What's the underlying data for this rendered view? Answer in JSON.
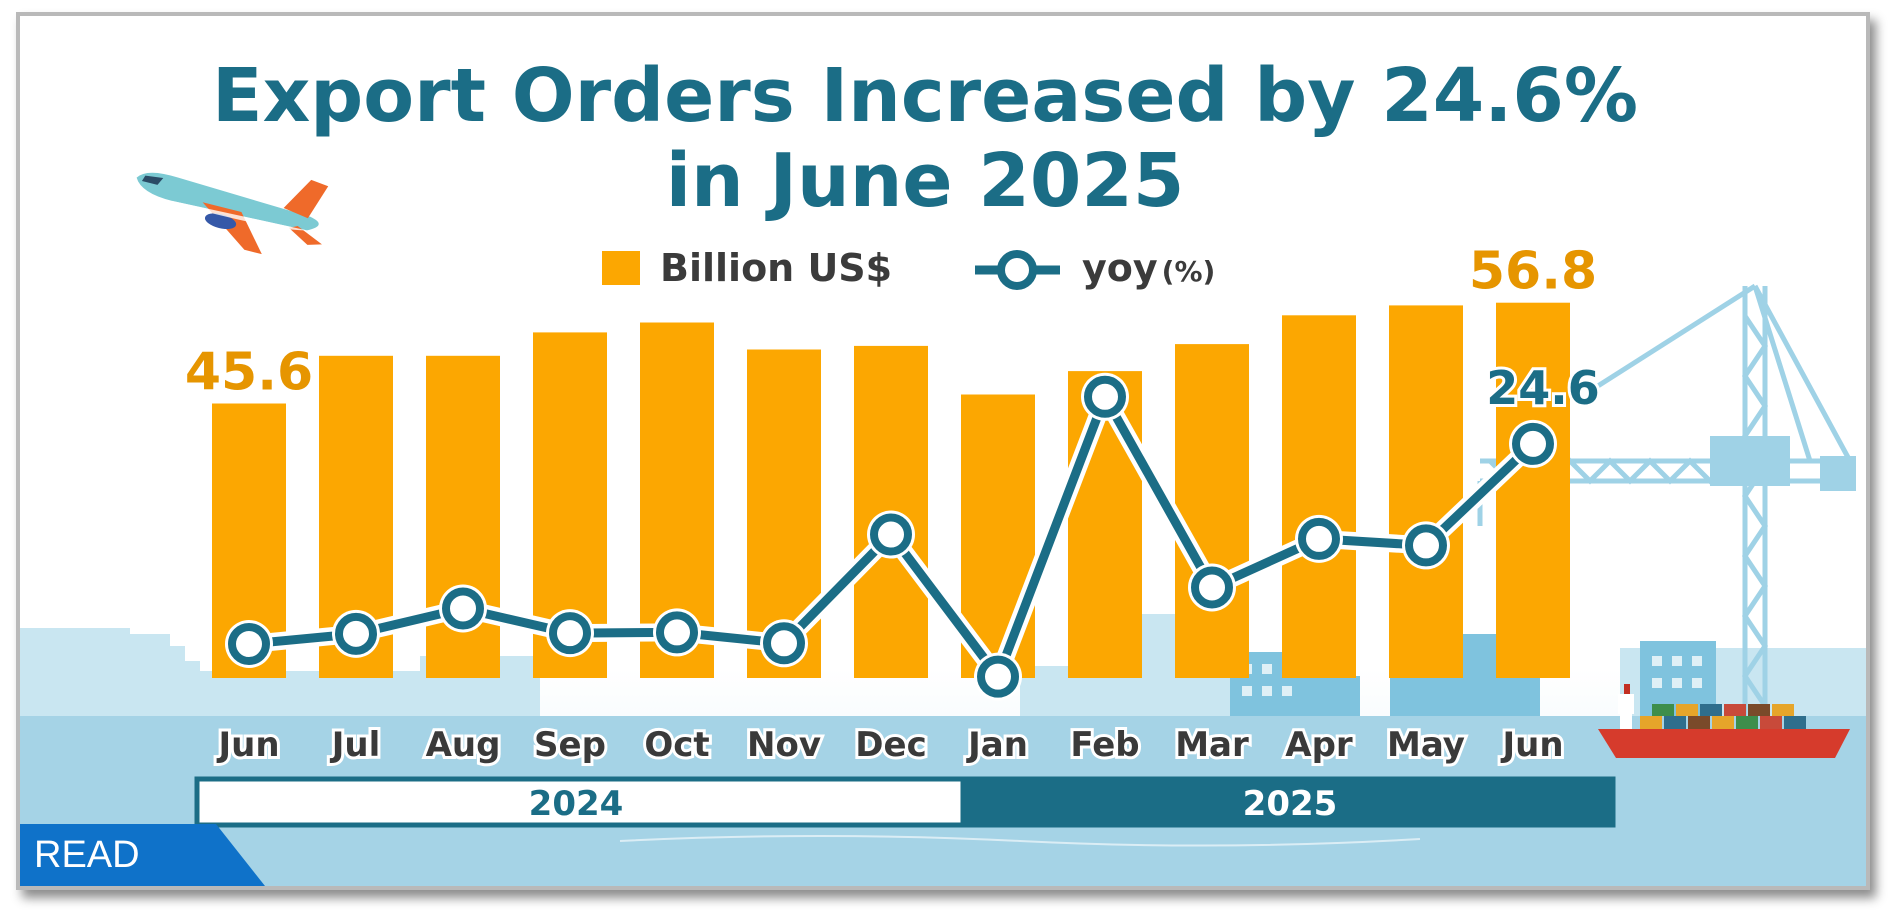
{
  "title_line1": "Export Orders Increased by 24.6%",
  "title_line2": "in June 2025",
  "legend": {
    "bar_label": "Billion US$",
    "line_label": "yoy",
    "line_unit": "(%)"
  },
  "years": [
    "2024",
    "2025"
  ],
  "read_label": "READ",
  "colors": {
    "bar": "#fca701",
    "line": "#1b6d86",
    "accent_text": "#e69500",
    "title": "#1b6d86",
    "badge": "#0f72c9"
  },
  "icons": [
    "airplane-icon",
    "crane-icon",
    "cargo-ship-icon"
  ],
  "chart_data": {
    "type": "bar",
    "categories": [
      "Jun",
      "Jul",
      "Aug",
      "Sep",
      "Oct",
      "Nov",
      "Dec",
      "Jan",
      "Feb",
      "Mar",
      "Apr",
      "May",
      "Jun"
    ],
    "series": [
      {
        "name": "Billion US$",
        "type": "bar",
        "values": [
          45.6,
          50.9,
          50.9,
          53.5,
          54.6,
          51.6,
          52.0,
          46.6,
          49.2,
          52.2,
          55.4,
          56.5,
          56.8
        ],
        "labels": [
          "45.6",
          "",
          "",
          "",
          "",
          "",
          "",
          "",
          "",
          "",
          "",
          "",
          "56.8"
        ]
      },
      {
        "name": "yoy",
        "type": "line",
        "values": [
          -3.0,
          -1.6,
          1.9,
          -1.5,
          -1.4,
          -2.9,
          12.1,
          -7.5,
          31.1,
          4.8,
          11.5,
          10.6,
          24.6
        ],
        "labels": [
          "",
          "",
          "",
          "",
          "",
          "",
          "",
          "",
          "",
          "",
          "",
          "",
          "24.6"
        ]
      }
    ],
    "legend_position": "top-center",
    "grid": false
  }
}
